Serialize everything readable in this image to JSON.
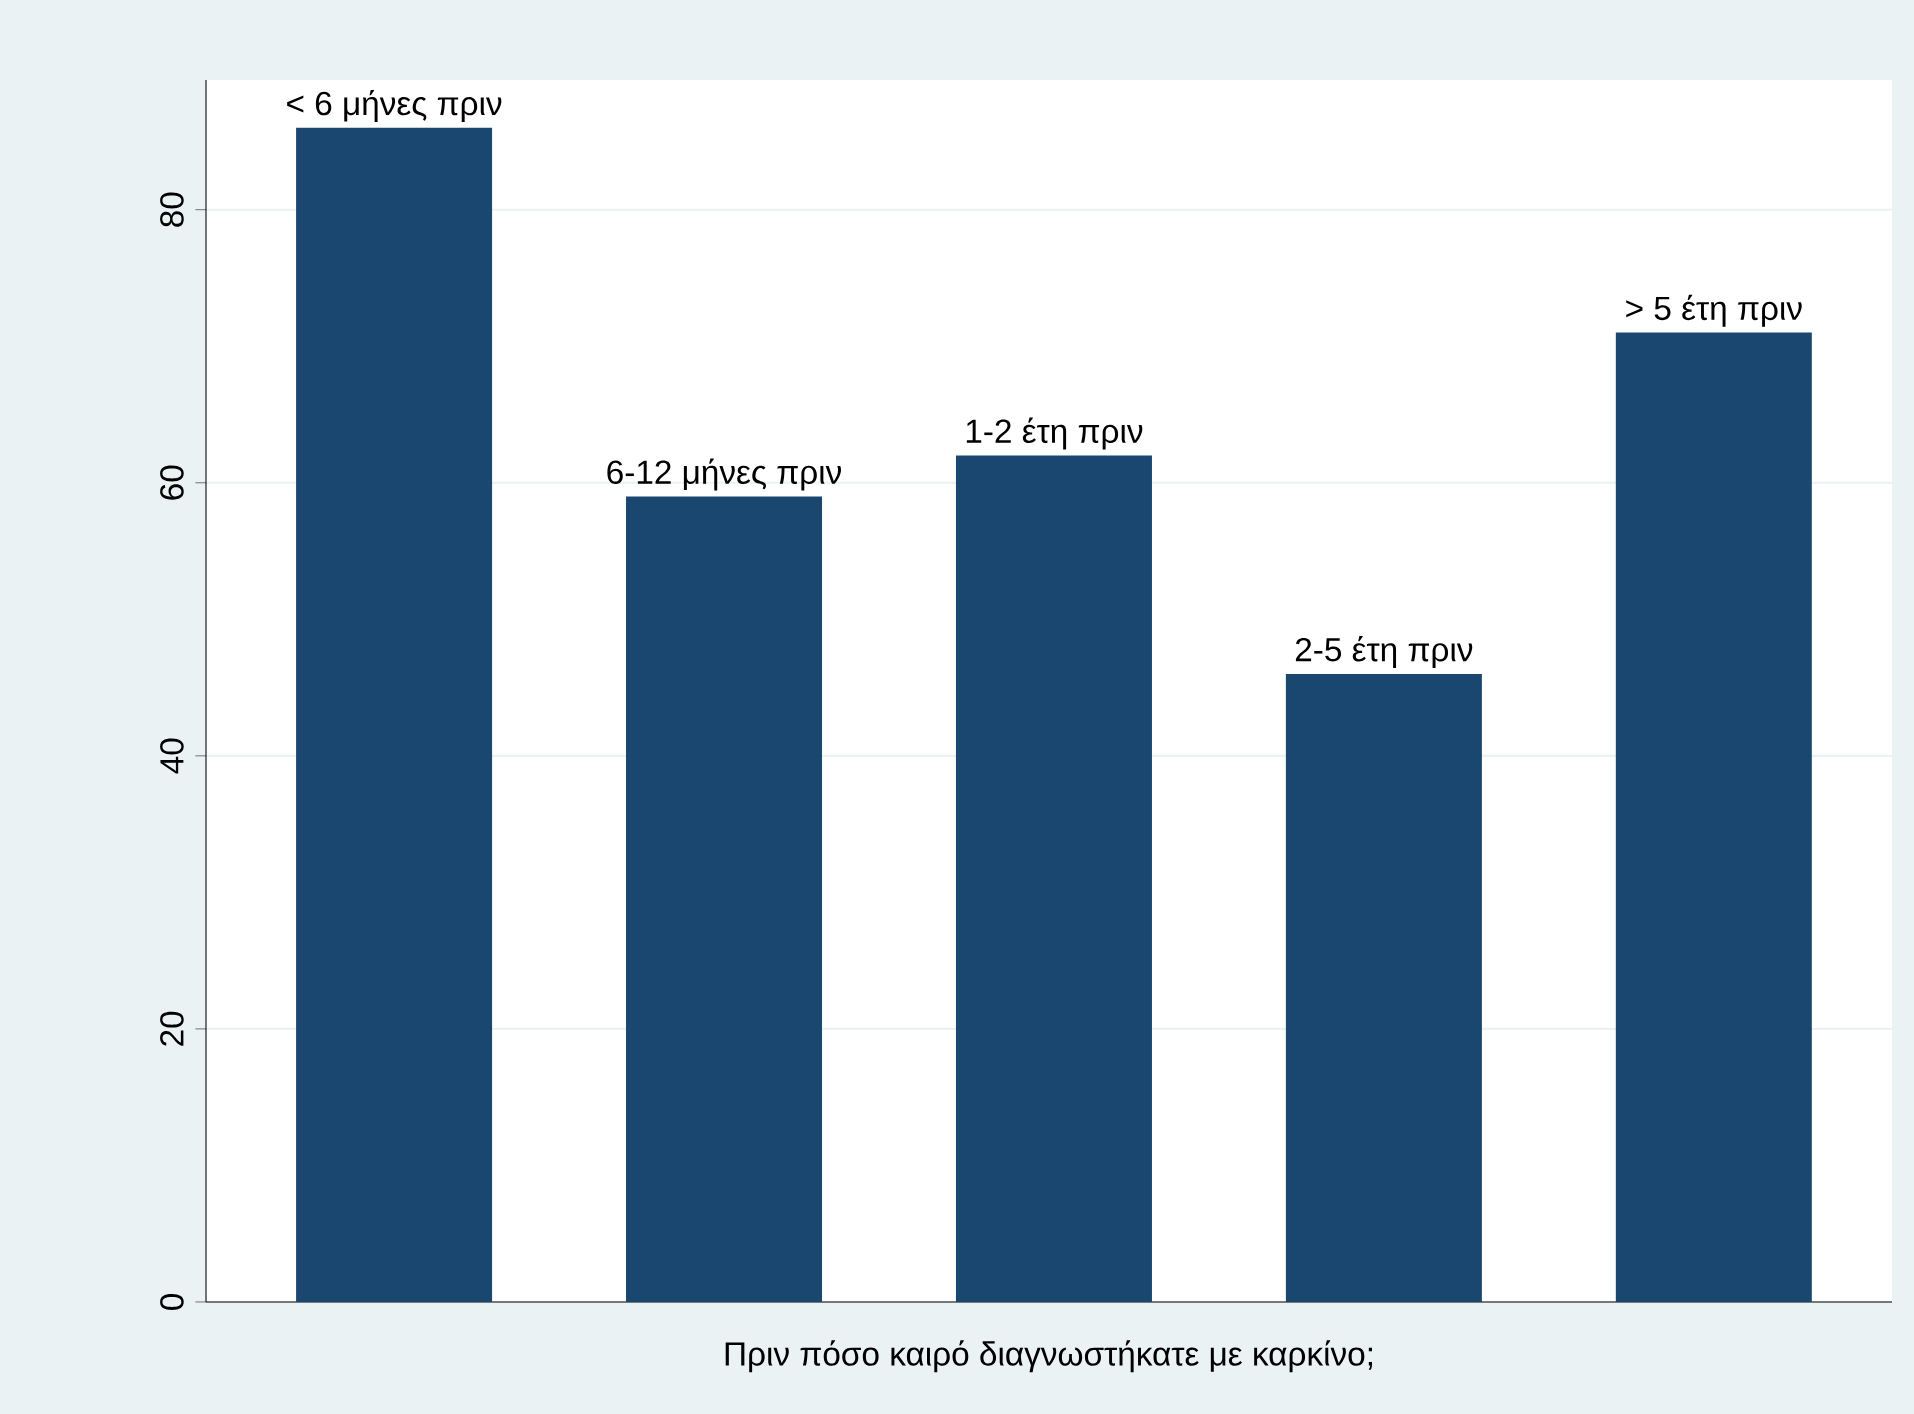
{
  "chart_data": {
    "type": "bar",
    "xlabel": "Πριν πόσο καιρό διαγνωστήκατε με καρκίνο;",
    "categories": [
      "< 6 μήνες πριν",
      "6-12 μήνες πριν",
      "1-2 έτη πριν",
      "2-5 έτη πριν",
      "> 5 έτη πριν"
    ],
    "values": [
      86,
      59,
      62,
      46,
      71
    ],
    "color": "#1a476f",
    "ylim": [
      0,
      89.5
    ],
    "yticks": [
      0,
      20,
      40,
      60,
      80
    ],
    "grid": "y"
  }
}
